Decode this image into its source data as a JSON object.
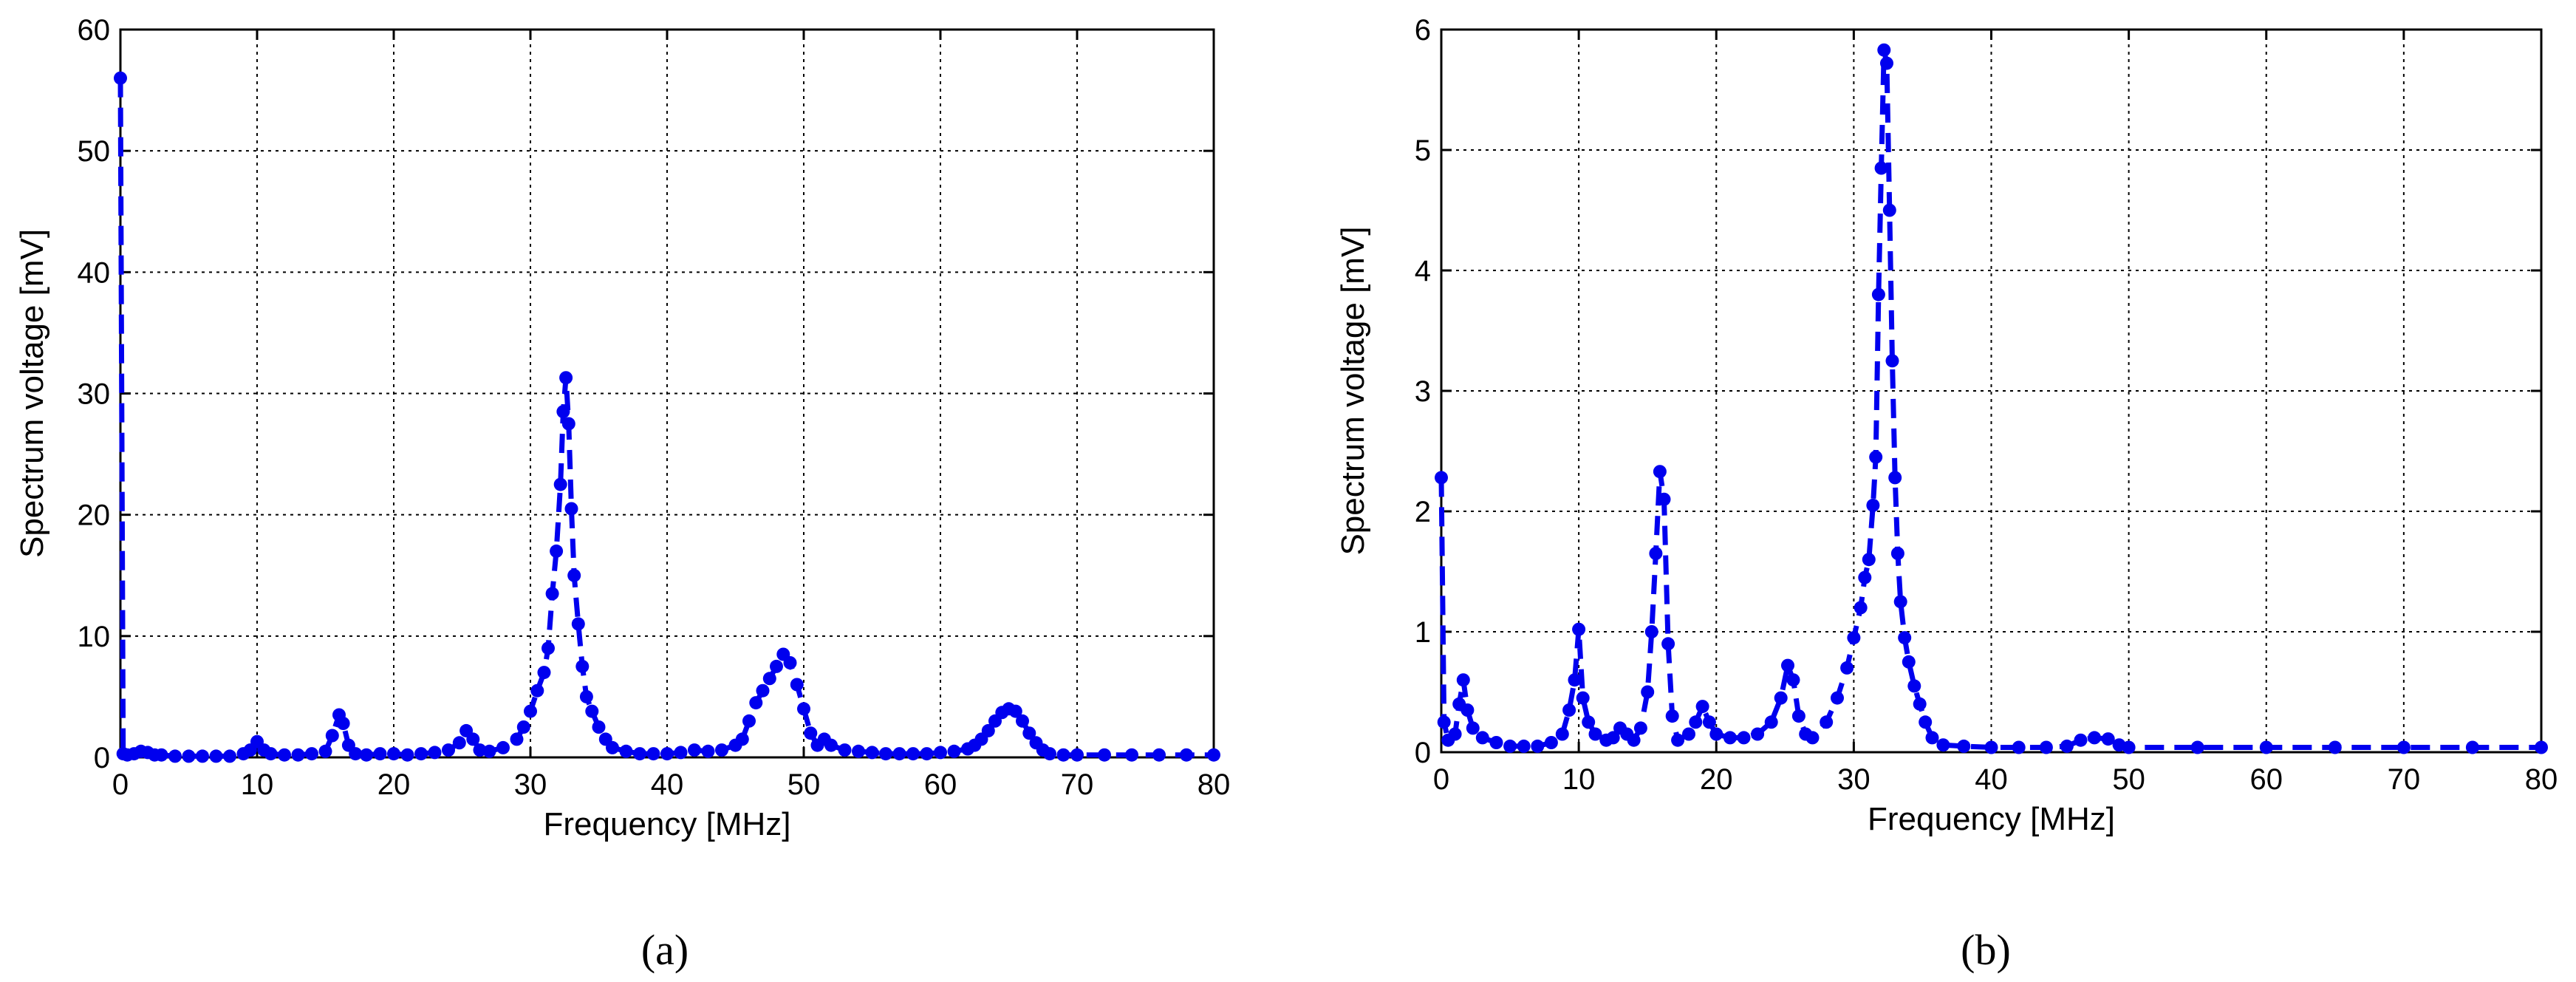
{
  "figure": {
    "caption_a": "(a)",
    "caption_b": "(b)"
  },
  "colors": {
    "series": "#0000ee",
    "grid": "#000000",
    "background": "#ffffff"
  },
  "chart_data": [
    {
      "type": "line",
      "panel": "a",
      "xlabel": "Frequency [MHz]",
      "ylabel": "Spectrum voltage [mV]",
      "xlim": [
        0,
        80
      ],
      "ylim": [
        0,
        60
      ],
      "xticks": [
        0,
        10,
        20,
        30,
        40,
        50,
        60,
        70,
        80
      ],
      "yticks": [
        0,
        10,
        20,
        30,
        40,
        50,
        60
      ],
      "grid": true,
      "style": "dashed line with circle markers",
      "series": [
        {
          "points": [
            [
              0,
              56.0
            ],
            [
              0.2,
              0.3
            ],
            [
              0.5,
              0.2
            ],
            [
              1,
              0.3
            ],
            [
              1.5,
              0.5
            ],
            [
              2,
              0.4
            ],
            [
              2.5,
              0.2
            ],
            [
              3,
              0.2
            ],
            [
              4,
              0.1
            ],
            [
              5,
              0.1
            ],
            [
              6,
              0.1
            ],
            [
              7,
              0.1
            ],
            [
              8,
              0.1
            ],
            [
              9,
              0.3
            ],
            [
              9.5,
              0.6
            ],
            [
              10,
              1.3
            ],
            [
              10.5,
              0.6
            ],
            [
              11,
              0.3
            ],
            [
              12,
              0.2
            ],
            [
              13,
              0.2
            ],
            [
              14,
              0.3
            ],
            [
              15,
              0.5
            ],
            [
              15.5,
              1.8
            ],
            [
              16,
              3.5
            ],
            [
              16.3,
              2.8
            ],
            [
              16.7,
              1.0
            ],
            [
              17.2,
              0.3
            ],
            [
              18,
              0.2
            ],
            [
              19,
              0.3
            ],
            [
              20,
              0.3
            ],
            [
              21,
              0.2
            ],
            [
              22,
              0.3
            ],
            [
              23,
              0.4
            ],
            [
              24,
              0.6
            ],
            [
              24.8,
              1.2
            ],
            [
              25.3,
              2.2
            ],
            [
              25.8,
              1.5
            ],
            [
              26.3,
              0.6
            ],
            [
              27,
              0.5
            ],
            [
              28,
              0.8
            ],
            [
              29,
              1.5
            ],
            [
              29.5,
              2.5
            ],
            [
              30,
              3.8
            ],
            [
              30.5,
              5.5
            ],
            [
              31,
              7.0
            ],
            [
              31.3,
              9.0
            ],
            [
              31.6,
              13.5
            ],
            [
              31.9,
              17.0
            ],
            [
              32.2,
              22.5
            ],
            [
              32.4,
              28.5
            ],
            [
              32.6,
              31.3
            ],
            [
              32.8,
              27.5
            ],
            [
              33.0,
              20.5
            ],
            [
              33.2,
              15.0
            ],
            [
              33.5,
              11.0
            ],
            [
              33.8,
              7.5
            ],
            [
              34.1,
              5.0
            ],
            [
              34.5,
              3.8
            ],
            [
              35,
              2.5
            ],
            [
              35.5,
              1.5
            ],
            [
              36,
              0.8
            ],
            [
              37,
              0.5
            ],
            [
              38,
              0.3
            ],
            [
              39,
              0.3
            ],
            [
              40,
              0.3
            ],
            [
              41,
              0.4
            ],
            [
              42,
              0.6
            ],
            [
              43,
              0.5
            ],
            [
              44,
              0.6
            ],
            [
              45,
              1.0
            ],
            [
              45.5,
              1.5
            ],
            [
              46,
              3.0
            ],
            [
              46.5,
              4.5
            ],
            [
              47,
              5.5
            ],
            [
              47.5,
              6.5
            ],
            [
              48,
              7.5
            ],
            [
              48.5,
              8.5
            ],
            [
              49,
              7.8
            ],
            [
              49.5,
              6.0
            ],
            [
              50,
              4.0
            ],
            [
              50.5,
              2.0
            ],
            [
              51,
              1.0
            ],
            [
              51.5,
              1.5
            ],
            [
              52,
              1.0
            ],
            [
              53,
              0.6
            ],
            [
              54,
              0.5
            ],
            [
              55,
              0.4
            ],
            [
              56,
              0.3
            ],
            [
              57,
              0.3
            ],
            [
              58,
              0.3
            ],
            [
              59,
              0.3
            ],
            [
              60,
              0.4
            ],
            [
              61,
              0.5
            ],
            [
              62,
              0.7
            ],
            [
              62.5,
              1.0
            ],
            [
              63,
              1.5
            ],
            [
              63.5,
              2.2
            ],
            [
              64,
              3.0
            ],
            [
              64.5,
              3.7
            ],
            [
              65,
              4.0
            ],
            [
              65.5,
              3.8
            ],
            [
              66,
              3.0
            ],
            [
              66.5,
              2.0
            ],
            [
              67,
              1.2
            ],
            [
              67.5,
              0.6
            ],
            [
              68,
              0.3
            ],
            [
              69,
              0.2
            ],
            [
              70,
              0.2
            ],
            [
              72,
              0.2
            ],
            [
              74,
              0.2
            ],
            [
              76,
              0.2
            ],
            [
              78,
              0.2
            ],
            [
              80,
              0.2
            ]
          ]
        }
      ]
    },
    {
      "type": "line",
      "panel": "b",
      "xlabel": "Frequency [MHz]",
      "ylabel": "Spectrum voltage [mV]",
      "xlim": [
        0,
        80
      ],
      "ylim": [
        0,
        6
      ],
      "xticks": [
        0,
        10,
        20,
        30,
        40,
        50,
        60,
        70,
        80
      ],
      "yticks": [
        0,
        1,
        2,
        3,
        4,
        5,
        6
      ],
      "grid": true,
      "style": "dashed line with circle markers",
      "series": [
        {
          "points": [
            [
              0,
              2.28
            ],
            [
              0.2,
              0.25
            ],
            [
              0.5,
              0.1
            ],
            [
              1,
              0.15
            ],
            [
              1.3,
              0.4
            ],
            [
              1.6,
              0.6
            ],
            [
              1.9,
              0.35
            ],
            [
              2.3,
              0.2
            ],
            [
              3,
              0.12
            ],
            [
              4,
              0.08
            ],
            [
              5,
              0.05
            ],
            [
              6,
              0.05
            ],
            [
              7,
              0.05
            ],
            [
              8,
              0.08
            ],
            [
              8.8,
              0.15
            ],
            [
              9.3,
              0.35
            ],
            [
              9.7,
              0.6
            ],
            [
              10.0,
              1.02
            ],
            [
              10.3,
              0.45
            ],
            [
              10.7,
              0.25
            ],
            [
              11.2,
              0.15
            ],
            [
              12,
              0.1
            ],
            [
              12.5,
              0.12
            ],
            [
              13,
              0.2
            ],
            [
              13.5,
              0.15
            ],
            [
              14,
              0.1
            ],
            [
              14.5,
              0.2
            ],
            [
              15,
              0.5
            ],
            [
              15.3,
              1.0
            ],
            [
              15.6,
              1.65
            ],
            [
              15.9,
              2.33
            ],
            [
              16.2,
              2.1
            ],
            [
              16.5,
              0.9
            ],
            [
              16.8,
              0.3
            ],
            [
              17.2,
              0.1
            ],
            [
              18,
              0.15
            ],
            [
              18.5,
              0.25
            ],
            [
              19,
              0.38
            ],
            [
              19.5,
              0.25
            ],
            [
              20,
              0.15
            ],
            [
              21,
              0.12
            ],
            [
              22,
              0.12
            ],
            [
              23,
              0.15
            ],
            [
              24,
              0.25
            ],
            [
              24.7,
              0.45
            ],
            [
              25.2,
              0.72
            ],
            [
              25.6,
              0.6
            ],
            [
              26,
              0.3
            ],
            [
              26.5,
              0.15
            ],
            [
              27,
              0.12
            ],
            [
              28,
              0.25
            ],
            [
              28.8,
              0.45
            ],
            [
              29.5,
              0.7
            ],
            [
              30,
              0.95
            ],
            [
              30.5,
              1.2
            ],
            [
              30.8,
              1.45
            ],
            [
              31.1,
              1.6
            ],
            [
              31.4,
              2.05
            ],
            [
              31.6,
              2.45
            ],
            [
              31.8,
              3.8
            ],
            [
              32.0,
              4.85
            ],
            [
              32.2,
              5.83
            ],
            [
              32.4,
              5.72
            ],
            [
              32.6,
              4.5
            ],
            [
              32.8,
              3.25
            ],
            [
              33.0,
              2.28
            ],
            [
              33.2,
              1.65
            ],
            [
              33.4,
              1.25
            ],
            [
              33.7,
              0.95
            ],
            [
              34,
              0.75
            ],
            [
              34.4,
              0.55
            ],
            [
              34.8,
              0.4
            ],
            [
              35.2,
              0.25
            ],
            [
              35.7,
              0.12
            ],
            [
              36.5,
              0.06
            ],
            [
              38,
              0.05
            ],
            [
              40,
              0.04
            ],
            [
              42,
              0.04
            ],
            [
              44,
              0.04
            ],
            [
              45.5,
              0.05
            ],
            [
              46.5,
              0.1
            ],
            [
              47.5,
              0.12
            ],
            [
              48.5,
              0.11
            ],
            [
              49.3,
              0.06
            ],
            [
              50,
              0.04
            ],
            [
              55,
              0.04
            ],
            [
              60,
              0.04
            ],
            [
              65,
              0.04
            ],
            [
              70,
              0.04
            ],
            [
              75,
              0.04
            ],
            [
              80,
              0.04
            ]
          ]
        }
      ]
    }
  ]
}
